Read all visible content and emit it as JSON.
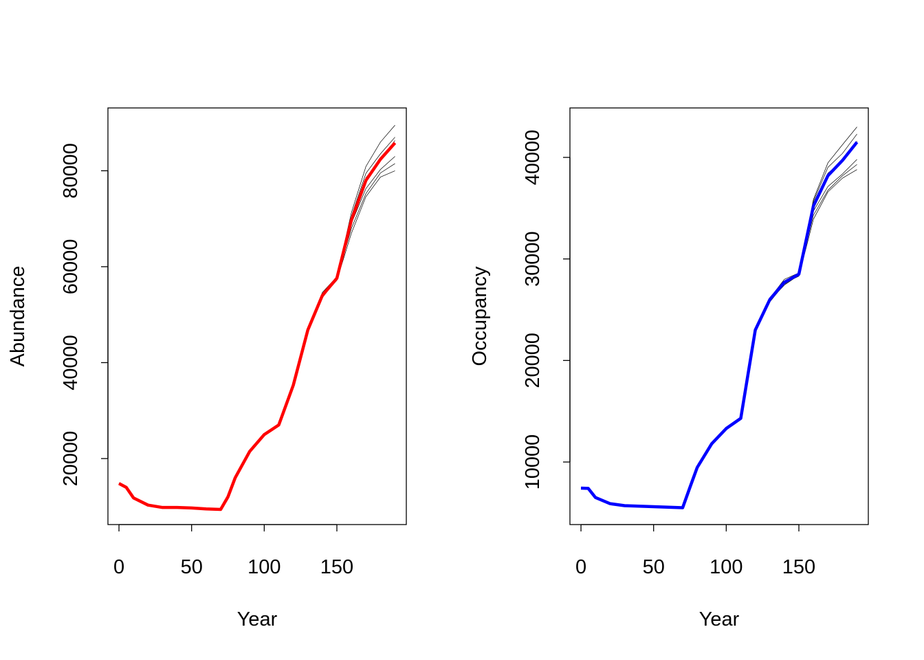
{
  "chart_data": [
    {
      "type": "line",
      "title": "",
      "xlabel": "Year",
      "ylabel": "Abundance",
      "xlim": [
        -7.6,
        197.8
      ],
      "ylim": [
        6240,
        93100
      ],
      "xticks": [
        0,
        50,
        100,
        150
      ],
      "yticks": [
        20000,
        40000,
        60000,
        80000
      ],
      "highlight_color": "#ff0000",
      "x": [
        0,
        5,
        10,
        20,
        30,
        40,
        50,
        60,
        70,
        75,
        80,
        90,
        100,
        110,
        120,
        130,
        140,
        150,
        160,
        170,
        180,
        190
      ],
      "mean": [
        14800,
        14000,
        11800,
        10300,
        9800,
        9800,
        9700,
        9500,
        9400,
        12000,
        16000,
        21500,
        25000,
        27000,
        35300,
        46800,
        54000,
        57600,
        69700,
        78000,
        82400,
        85800
      ],
      "simulations": [
        {
          "name": "sim",
          "end": [
            90000,
            89500
          ]
        },
        {
          "name": "sim",
          "end": [
            87500,
            87000
          ]
        },
        {
          "name": "sim",
          "end": [
            86500,
            86300
          ]
        },
        {
          "name": "sim",
          "end": [
            83500,
            83000
          ]
        },
        {
          "name": "sim",
          "end": [
            82000,
            81500
          ]
        },
        {
          "name": "sim",
          "end": [
            80500,
            80000
          ]
        }
      ]
    },
    {
      "type": "line",
      "title": "",
      "xlabel": "Year",
      "ylabel": "Occupancy",
      "xlim": [
        -7.6,
        197.8
      ],
      "ylim": [
        3840,
        44870
      ],
      "xticks": [
        0,
        50,
        100,
        150
      ],
      "yticks": [
        10000,
        20000,
        30000,
        40000
      ],
      "highlight_color": "#0000ff",
      "x": [
        0,
        5,
        10,
        20,
        30,
        40,
        50,
        60,
        70,
        75,
        80,
        90,
        100,
        110,
        120,
        130,
        140,
        150,
        160,
        170,
        180,
        190
      ],
      "mean": [
        7430,
        7400,
        6500,
        5900,
        5700,
        5650,
        5600,
        5550,
        5500,
        7500,
        9460,
        11800,
        13300,
        14300,
        23000,
        26000,
        27700,
        28500,
        35200,
        38200,
        39700,
        41500
      ],
      "simulations": [
        {
          "name": "sim",
          "end": [
            43300,
            43000
          ]
        },
        {
          "name": "sim",
          "end": [
            42500,
            42300
          ]
        },
        {
          "name": "sim",
          "end": [
            41800,
            41600
          ]
        },
        {
          "name": "sim",
          "end": [
            40000,
            39800
          ]
        },
        {
          "name": "sim",
          "end": [
            39500,
            39300
          ]
        },
        {
          "name": "sim",
          "end": [
            39000,
            38800
          ]
        }
      ]
    }
  ]
}
